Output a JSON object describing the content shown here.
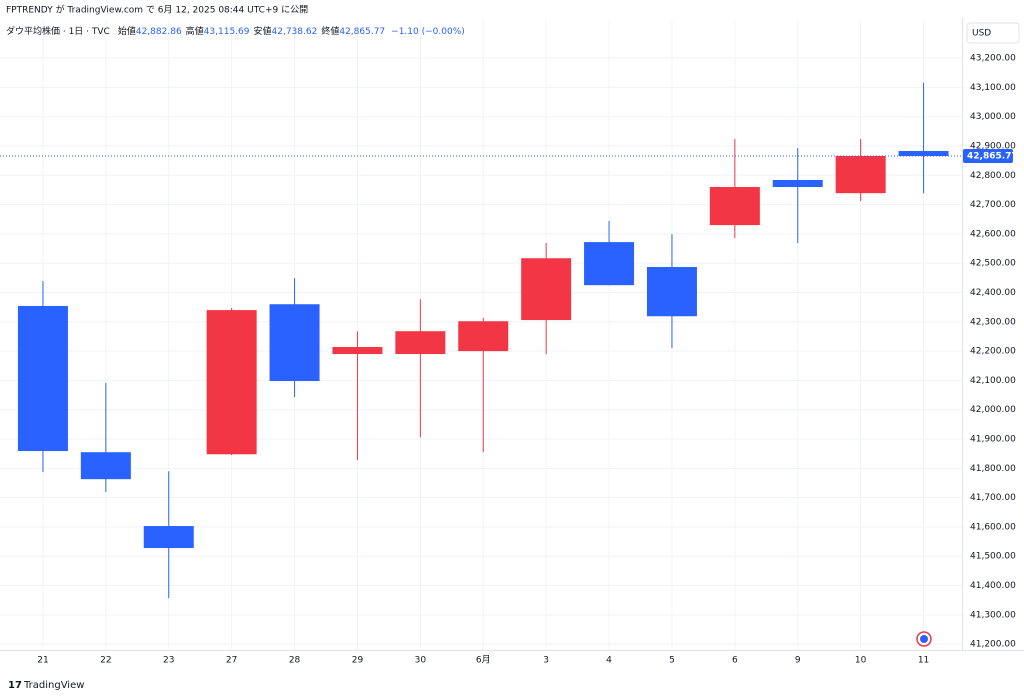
{
  "header": {
    "publish_line": "FPTRENDY が TradingView.com で 6月 12, 2025 08:44 UTC+9 に公開",
    "brand": "TradingView"
  },
  "chart_data": {
    "type": "candlestick",
    "legend": {
      "symbol": "ダウ平均株価 · 1日 · TVC",
      "items": [
        {
          "label": "始値",
          "value": "42,882.86"
        },
        {
          "label": "高値",
          "value": "43,115.69"
        },
        {
          "label": "安値",
          "value": "42,738.62"
        },
        {
          "label": "終値",
          "value": "42,865.77"
        }
      ],
      "change": "−1.10 (−0.00%)"
    },
    "currency": "USD",
    "categories": [
      "21",
      "22",
      "23",
      "27",
      "28",
      "29",
      "30",
      "6月",
      "3",
      "4",
      "5",
      "6",
      "9",
      "10",
      "11"
    ],
    "series": [
      {
        "open": [
          42354,
          41855,
          41603,
          41848,
          42360,
          42190,
          42190,
          42200,
          42306,
          42572,
          42487,
          42630,
          42784,
          42739,
          42882.86
        ],
        "high": [
          42439,
          42091,
          41790,
          42347,
          42449,
          42268,
          42377,
          42313,
          42569,
          42644,
          42599,
          42924,
          42893,
          42924,
          43115.69
        ],
        "low": [
          41787,
          41719,
          41357,
          41845,
          42043,
          41828,
          41906,
          41855,
          42190,
          42425,
          42210,
          42586,
          42569,
          42712,
          42738.62
        ],
        "close": [
          41859,
          41763,
          41528,
          42340,
          42098,
          42214,
          42268,
          42302,
          42517,
          42425,
          42319,
          42760,
          42760,
          42866,
          42865.77
        ]
      }
    ],
    "up_color": "#f23645",
    "down_color": "#2962ff",
    "last_price_label": "42,865.77",
    "ylim": [
      41180,
      43330
    ],
    "yticks": [
      {
        "value": 41200,
        "label": "41,200.00"
      },
      {
        "value": 41300,
        "label": "41,300.00"
      },
      {
        "value": 41400,
        "label": "41,400.00"
      },
      {
        "value": 41500,
        "label": "41,500.00"
      },
      {
        "value": 41600,
        "label": "41,600.00"
      },
      {
        "value": 41700,
        "label": "41,700.00"
      },
      {
        "value": 41800,
        "label": "41,800.00"
      },
      {
        "value": 41900,
        "label": "41,900.00"
      },
      {
        "value": 42000,
        "label": "42,000.00"
      },
      {
        "value": 42100,
        "label": "42,100.00"
      },
      {
        "value": 42200,
        "label": "42,200.00"
      },
      {
        "value": 42300,
        "label": "42,300.00"
      },
      {
        "value": 42400,
        "label": "42,400.00"
      },
      {
        "value": 42500,
        "label": "42,500.00"
      },
      {
        "value": 42600,
        "label": "42,600.00"
      },
      {
        "value": 42700,
        "label": "42,700.00"
      },
      {
        "value": 42800,
        "label": "42,800.00"
      },
      {
        "value": 42900,
        "label": "42,900.00"
      },
      {
        "value": 43000,
        "label": "43,000.00"
      },
      {
        "value": 43100,
        "label": "43,100.00"
      },
      {
        "value": 43200,
        "label": "43,200.00"
      }
    ],
    "grid": true
  }
}
